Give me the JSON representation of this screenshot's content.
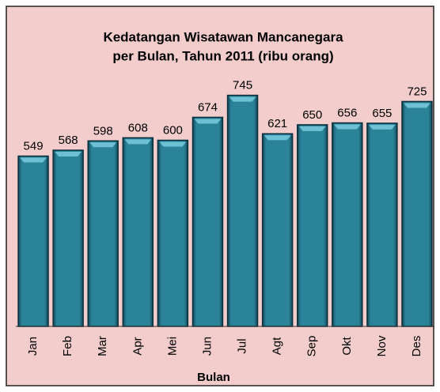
{
  "chart_data": {
    "type": "bar",
    "title": [
      "Kedatangan Wisatawan Mancanegara",
      "per Bulan, Tahun 2011 (ribu orang)"
    ],
    "x_label": "Bulan",
    "categories": [
      "Jan",
      "Feb",
      "Mar",
      "Apr",
      "Mei",
      "Jun",
      "Jul",
      "Agt",
      "Sep",
      "Okt",
      "Nov",
      "Des"
    ],
    "values": [
      549,
      568,
      598,
      608,
      600,
      674,
      745,
      621,
      650,
      656,
      655,
      725
    ],
    "color": "#2b8399",
    "ylim": [
      0,
      800
    ]
  }
}
